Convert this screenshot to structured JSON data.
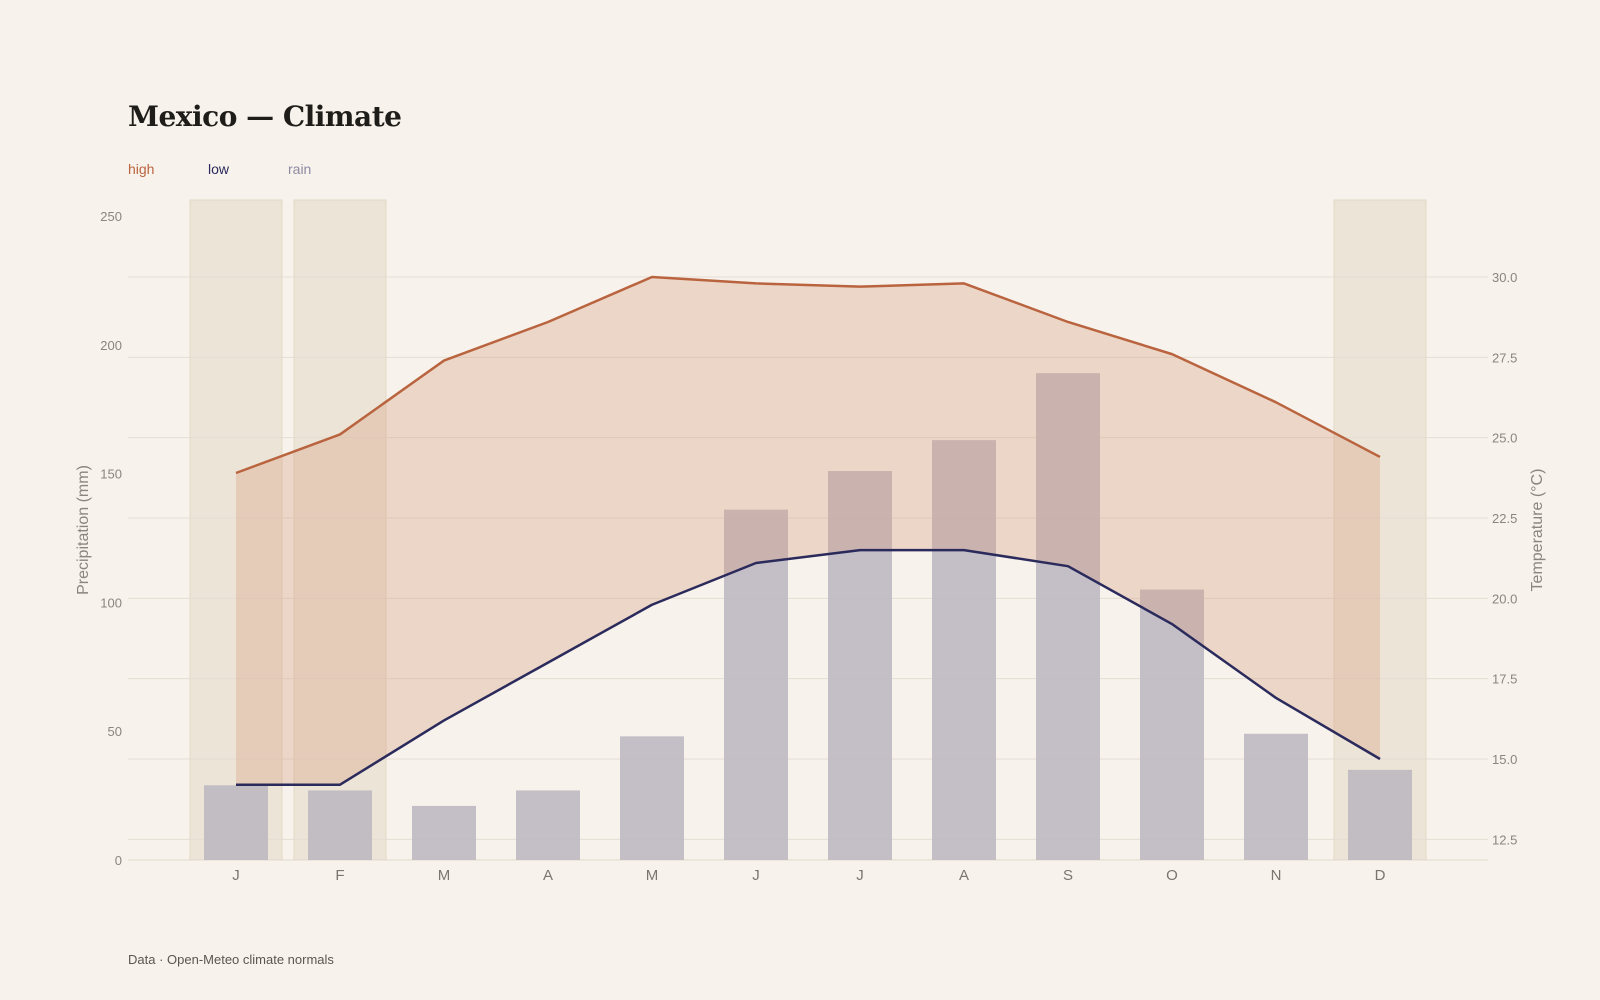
{
  "header": {
    "title": "Mexico — Climate"
  },
  "legend": [
    {
      "label": "high",
      "color": "#b9643f"
    },
    {
      "label": "low",
      "color": "#2b2a5c"
    },
    {
      "label": "rain",
      "color": "#8d8aa2"
    }
  ],
  "footer": {
    "source": "Data · Open-Meteo climate normals"
  },
  "chart_data": {
    "type": "bar",
    "categories": [
      "J",
      "F",
      "M",
      "A",
      "M",
      "J",
      "J",
      "A",
      "S",
      "O",
      "N",
      "D"
    ],
    "highlighted_months": [
      0,
      1,
      11
    ],
    "series": [
      {
        "name": "high",
        "kind": "line",
        "axis": "right",
        "color": "#b9643f",
        "values": [
          23.9,
          25.1,
          27.4,
          28.6,
          30.0,
          29.8,
          29.7,
          29.8,
          28.6,
          27.6,
          26.1,
          24.4
        ]
      },
      {
        "name": "low",
        "kind": "line",
        "axis": "right",
        "color": "#2b2a5c",
        "values": [
          14.2,
          14.2,
          16.2,
          18.0,
          19.8,
          21.1,
          21.5,
          21.5,
          21.0,
          19.2,
          16.9,
          15.0
        ]
      },
      {
        "name": "rain",
        "kind": "bar",
        "axis": "left",
        "color": "#c1bdc5",
        "values": [
          29,
          27,
          21,
          27,
          48,
          136,
          151,
          163,
          189,
          105,
          49,
          35
        ]
      }
    ],
    "y_left": {
      "label": "Precipitation (mm)",
      "ticks": [
        0,
        50,
        100,
        150,
        200,
        250
      ],
      "range": [
        0,
        250
      ]
    },
    "y_right": {
      "label": "Temperature (°C)",
      "ticks": [
        12.5,
        15.0,
        17.5,
        20.0,
        22.5,
        25.0,
        27.5,
        30.0
      ],
      "range": [
        11.8,
        32.0
      ]
    },
    "grid": true
  }
}
